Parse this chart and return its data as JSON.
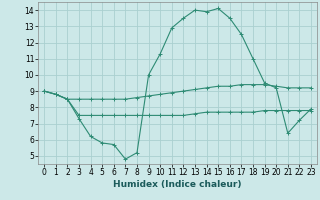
{
  "xlabel": "Humidex (Indice chaleur)",
  "x_values": [
    0,
    1,
    2,
    3,
    4,
    5,
    6,
    7,
    8,
    9,
    10,
    11,
    12,
    13,
    14,
    15,
    16,
    17,
    18,
    19,
    20,
    21,
    22,
    23
  ],
  "line1_y": [
    9.0,
    8.8,
    8.5,
    7.3,
    6.2,
    5.8,
    5.7,
    4.8,
    5.2,
    10.0,
    11.3,
    12.9,
    13.5,
    14.0,
    13.9,
    14.1,
    13.5,
    12.5,
    11.0,
    9.5,
    9.2,
    6.4,
    7.2,
    7.9
  ],
  "line2_y": [
    9.0,
    8.8,
    8.5,
    8.5,
    8.5,
    8.5,
    8.5,
    8.5,
    8.6,
    8.7,
    8.8,
    8.9,
    9.0,
    9.1,
    9.2,
    9.3,
    9.3,
    9.4,
    9.4,
    9.4,
    9.3,
    9.2,
    9.2,
    9.2
  ],
  "line3_y": [
    9.0,
    8.8,
    8.5,
    7.5,
    7.5,
    7.5,
    7.5,
    7.5,
    7.5,
    7.5,
    7.5,
    7.5,
    7.5,
    7.6,
    7.7,
    7.7,
    7.7,
    7.7,
    7.7,
    7.8,
    7.8,
    7.8,
    7.8,
    7.8
  ],
  "color": "#2e8b74",
  "bg_color": "#cce8e8",
  "grid_color": "#aad0d0",
  "ylim": [
    4.5,
    14.5
  ],
  "xlim": [
    -0.5,
    23.5
  ],
  "yticks": [
    5,
    6,
    7,
    8,
    9,
    10,
    11,
    12,
    13,
    14
  ],
  "xticks": [
    0,
    1,
    2,
    3,
    4,
    5,
    6,
    7,
    8,
    9,
    10,
    11,
    12,
    13,
    14,
    15,
    16,
    17,
    18,
    19,
    20,
    21,
    22,
    23
  ],
  "tick_fontsize": 5.5,
  "xlabel_fontsize": 6.5
}
